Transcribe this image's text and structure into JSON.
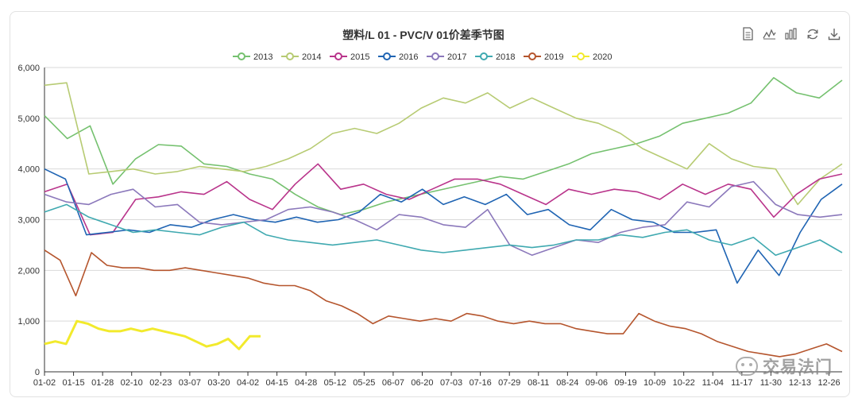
{
  "chart_data": {
    "type": "line",
    "title": "塑料/L 01 - PVC/V 01价差季节图",
    "xlabel": "",
    "ylabel": "",
    "ylim": [
      0,
      6000
    ],
    "y_ticks": [
      "0",
      "1,000",
      "2,000",
      "3,000",
      "4,000",
      "5,000",
      "6,000"
    ],
    "x_ticks": [
      "01-02",
      "01-15",
      "01-28",
      "02-10",
      "02-23",
      "03-07",
      "03-20",
      "04-02",
      "04-15",
      "04-28",
      "05-12",
      "05-25",
      "06-07",
      "06-20",
      "07-03",
      "07-16",
      "07-29",
      "08-11",
      "08-24",
      "09-06",
      "09-19",
      "10-09",
      "10-22",
      "11-04",
      "11-17",
      "11-30",
      "12-13",
      "12-26"
    ],
    "grid": true,
    "legend_position": "top-center",
    "series": [
      {
        "name": "2013",
        "color": "#75c16f",
        "values": [
          5050,
          4600,
          4850,
          3700,
          4200,
          4480,
          4450,
          4100,
          4050,
          3900,
          3800,
          3500,
          3250,
          3100,
          3200,
          3350,
          3450,
          3550,
          3650,
          3750,
          3850,
          3800,
          3950,
          4100,
          4300,
          4400,
          4500,
          4650,
          4900,
          5000,
          5100,
          5300,
          5800,
          5500,
          5400,
          5750
        ]
      },
      {
        "name": "2014",
        "color": "#b7cb73",
        "values": [
          5650,
          5700,
          3900,
          3950,
          4000,
          3900,
          3950,
          4050,
          4000,
          3950,
          4050,
          4200,
          4400,
          4700,
          4800,
          4700,
          4900,
          5200,
          5400,
          5300,
          5500,
          5200,
          5400,
          5200,
          5000,
          4900,
          4700,
          4400,
          4200,
          4000,
          4500,
          4200,
          4050,
          4000,
          3300,
          3800,
          4100
        ]
      },
      {
        "name": "2015",
        "color": "#b9348b",
        "values": [
          3550,
          3700,
          2700,
          2750,
          3400,
          3450,
          3550,
          3500,
          3750,
          3400,
          3200,
          3700,
          4100,
          3600,
          3700,
          3500,
          3400,
          3600,
          3800,
          3800,
          3700,
          3500,
          3300,
          3600,
          3500,
          3600,
          3550,
          3400,
          3700,
          3500,
          3700,
          3600,
          3050,
          3500,
          3800,
          3900
        ]
      },
      {
        "name": "2016",
        "color": "#1f64b3",
        "values": [
          4000,
          3800,
          2700,
          2750,
          2800,
          2750,
          2900,
          2850,
          3000,
          3100,
          3000,
          2950,
          3050,
          2950,
          3000,
          3150,
          3500,
          3350,
          3600,
          3300,
          3450,
          3300,
          3500,
          3100,
          3200,
          2900,
          2800,
          3200,
          3000,
          2950,
          2750,
          2750,
          2800,
          1750,
          2400,
          1900,
          2750,
          3400,
          3700
        ]
      },
      {
        "name": "2017",
        "color": "#8b78bb",
        "values": [
          3500,
          3350,
          3300,
          3500,
          3600,
          3250,
          3300,
          2950,
          2900,
          2950,
          3000,
          3200,
          3250,
          3150,
          3000,
          2800,
          3100,
          3050,
          2900,
          2850,
          3200,
          2500,
          2300,
          2450,
          2600,
          2550,
          2750,
          2850,
          2900,
          3350,
          3250,
          3650,
          3750,
          3300,
          3100,
          3050,
          3100
        ]
      },
      {
        "name": "2018",
        "color": "#3fa9b0",
        "values": [
          3150,
          3300,
          3050,
          2900,
          2750,
          2800,
          2750,
          2700,
          2850,
          2950,
          2700,
          2600,
          2550,
          2500,
          2550,
          2600,
          2500,
          2400,
          2350,
          2400,
          2450,
          2500,
          2450,
          2500,
          2600,
          2600,
          2700,
          2650,
          2750,
          2800,
          2600,
          2500,
          2650,
          2300,
          2450,
          2600,
          2350
        ]
      },
      {
        "name": "2019",
        "color": "#b5552d",
        "values": [
          2400,
          2200,
          1500,
          2350,
          2100,
          2050,
          2050,
          2000,
          2000,
          2050,
          2000,
          1950,
          1900,
          1850,
          1750,
          1700,
          1700,
          1600,
          1400,
          1300,
          1150,
          950,
          1100,
          1050,
          1000,
          1050,
          1000,
          1150,
          1100,
          1000,
          950,
          1000,
          950,
          950,
          850,
          800,
          750,
          750,
          1150,
          1000,
          900,
          850,
          750,
          600,
          500,
          400,
          350,
          300,
          350,
          450,
          550,
          400
        ]
      },
      {
        "name": "2020",
        "color": "#f2ea2c",
        "values": [
          550,
          600,
          550,
          1000,
          950,
          850,
          800,
          800,
          850,
          800,
          850,
          800,
          750,
          700,
          600,
          500,
          550,
          650,
          450,
          700,
          700
        ]
      }
    ]
  },
  "toolbar": {
    "icons": [
      "document-icon",
      "line-chart-icon",
      "bar-chart-icon",
      "refresh-icon",
      "download-icon"
    ]
  },
  "watermark": {
    "brand": "交易法门"
  }
}
